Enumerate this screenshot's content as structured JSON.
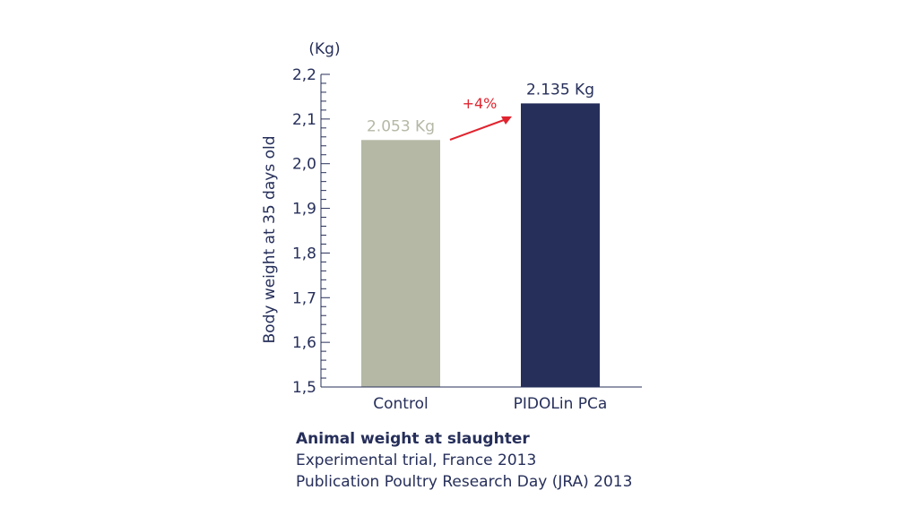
{
  "chart_data": {
    "type": "bar",
    "unit": "(Kg)",
    "ylabel": "Body weight at 35 days old",
    "ylim": [
      1.5,
      2.2
    ],
    "yticks": [
      "1,5",
      "1,6",
      "1,7",
      "1,8",
      "1,9",
      "2,0",
      "2,1",
      "2,2"
    ],
    "categories": [
      "Control",
      "PIDOLin PCa"
    ],
    "values": [
      2.053,
      2.135
    ],
    "data_labels": [
      "2.053 Kg",
      "2.135 Kg"
    ],
    "bar_colors": [
      "#b4b8a5",
      "#262f5a"
    ],
    "label_colors": [
      "#b4b8a5",
      "#262f5a"
    ],
    "annotation": {
      "text": "+4%",
      "color": "#e0242f"
    },
    "axis_color": "#262f5a"
  },
  "caption": {
    "title": "Animal weight at slaughter",
    "line1": "Experimental trial, France 2013",
    "line2": "Publication Poultry Research Day (JRA) 2013"
  }
}
